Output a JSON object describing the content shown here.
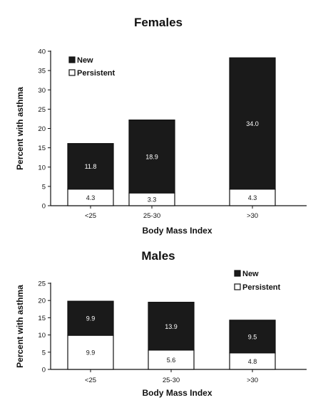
{
  "chart_data": [
    {
      "type": "bar",
      "stacked": true,
      "title": "Females",
      "xlabel": "Body Mass Index",
      "ylabel": "Percent with asthma",
      "categories": [
        "<25",
        "25-30",
        ">30"
      ],
      "ylim": [
        0,
        40
      ],
      "yticks": [
        0,
        5,
        10,
        15,
        20,
        25,
        30,
        35,
        40
      ],
      "legend_position": "top-left",
      "series": [
        {
          "name": "Persistent",
          "values": [
            4.3,
            3.3,
            4.3
          ],
          "labels": [
            "4.3",
            "3.3",
            "4.3"
          ],
          "color": "#ffffff"
        },
        {
          "name": "New",
          "values": [
            11.8,
            18.9,
            34.0
          ],
          "labels": [
            "11.8",
            "18.9",
            "34.0"
          ],
          "color": "#1a1a1a"
        }
      ]
    },
    {
      "type": "bar",
      "stacked": true,
      "title": "Males",
      "xlabel": "Body Mass Index",
      "ylabel": "Percent with asthma",
      "categories": [
        "<25",
        "25-30",
        ">30"
      ],
      "ylim": [
        0,
        25
      ],
      "yticks": [
        0,
        5,
        10,
        15,
        20,
        25
      ],
      "legend_position": "top-right",
      "series": [
        {
          "name": "Persistent",
          "values": [
            9.9,
            5.6,
            4.8
          ],
          "labels": [
            "9.9",
            "5.6",
            "4.8"
          ],
          "color": "#ffffff"
        },
        {
          "name": "New",
          "values": [
            9.9,
            13.9,
            9.5
          ],
          "labels": [
            "9.9",
            "13.9",
            "9.5"
          ],
          "color": "#1a1a1a"
        }
      ]
    }
  ]
}
